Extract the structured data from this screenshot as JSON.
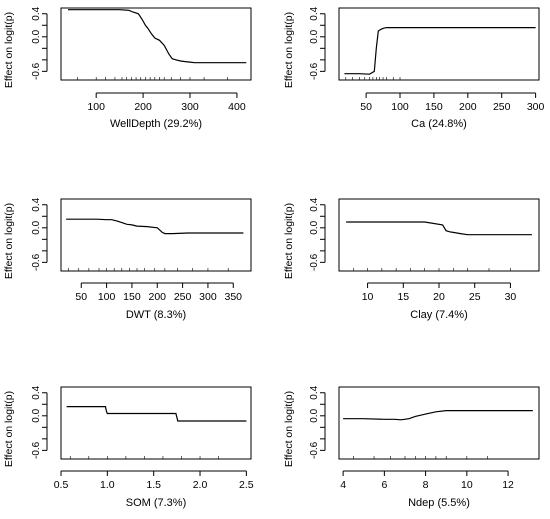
{
  "chart_data": [
    {
      "type": "line",
      "xlabel": "WellDepth  (29.2%)",
      "ylabel": "Effect on logit(p)",
      "xlim": [
        25,
        430
      ],
      "ylim": [
        -0.75,
        0.5
      ],
      "xticks": [
        100,
        200,
        300,
        400
      ],
      "yticks": [
        0.4,
        0.0,
        -0.6
      ],
      "ytick_labels": [
        "0.4",
        "0.0",
        "-0.6"
      ],
      "minor_yticks": [
        0.2,
        -0.2,
        -0.4
      ],
      "series": [
        {
          "x": [
            40,
            100,
            150,
            170,
            178,
            190,
            198,
            205,
            210,
            218,
            225,
            235,
            245,
            255,
            262,
            270,
            280,
            290,
            300,
            310,
            320,
            420
          ],
          "y": [
            0.47,
            0.47,
            0.47,
            0.46,
            0.43,
            0.4,
            0.3,
            0.2,
            0.15,
            0.05,
            -0.02,
            -0.06,
            -0.15,
            -0.3,
            -0.38,
            -0.4,
            -0.42,
            -0.43,
            -0.44,
            -0.45,
            -0.45,
            -0.45
          ]
        }
      ],
      "rug": [
        60,
        100,
        120,
        140,
        155,
        165,
        175,
        185,
        195,
        205,
        215,
        225,
        235,
        245,
        260,
        280,
        300,
        330,
        380
      ]
    },
    {
      "type": "line",
      "xlabel": "Ca  (24.8%)",
      "ylabel": "Effect on logit(p)",
      "xlim": [
        10,
        305
      ],
      "ylim": [
        -0.75,
        0.5
      ],
      "xticks": [
        50,
        100,
        150,
        200,
        250,
        300
      ],
      "yticks": [
        0.4,
        0.0,
        -0.6
      ],
      "ytick_labels": [
        "0.4",
        "0.0",
        "-0.6"
      ],
      "minor_yticks": [
        0.2,
        -0.2,
        -0.4
      ],
      "series": [
        {
          "x": [
            18,
            40,
            55,
            62,
            65,
            68,
            72,
            76,
            80,
            100,
            200,
            300
          ],
          "y": [
            -0.64,
            -0.64,
            -0.65,
            -0.6,
            -0.2,
            0.1,
            0.13,
            0.15,
            0.16,
            0.16,
            0.16,
            0.16
          ]
        }
      ],
      "rug": [
        20,
        30,
        40,
        48,
        55,
        60,
        65,
        70,
        75,
        80,
        90,
        100
      ]
    },
    {
      "type": "line",
      "xlabel": "DWT  (8.3%)",
      "ylabel": "Effect on logit(p)",
      "xlim": [
        10,
        385
      ],
      "ylim": [
        -0.75,
        0.5
      ],
      "xticks": [
        50,
        100,
        150,
        200,
        250,
        300,
        350
      ],
      "yticks": [
        0.4,
        0.0,
        -0.6
      ],
      "ytick_labels": [
        "0.4",
        "0.0",
        "-0.6"
      ],
      "minor_yticks": [
        0.2,
        -0.2,
        -0.4
      ],
      "series": [
        {
          "x": [
            20,
            80,
            100,
            110,
            120,
            130,
            140,
            150,
            160,
            180,
            200,
            210,
            215,
            230,
            260,
            300,
            370
          ],
          "y": [
            0.15,
            0.15,
            0.14,
            0.14,
            0.12,
            0.09,
            0.06,
            0.05,
            0.03,
            0.02,
            0.0,
            -0.08,
            -0.1,
            -0.1,
            -0.09,
            -0.09,
            -0.09
          ]
        }
      ],
      "rug": [
        25,
        45,
        65,
        85,
        100,
        115,
        130,
        145,
        160,
        175,
        195,
        215,
        240,
        270,
        300,
        340
      ]
    },
    {
      "type": "line",
      "xlabel": "Clay  (7.4%)",
      "ylabel": "Effect on logit(p)",
      "xlim": [
        6,
        34
      ],
      "ylim": [
        -0.75,
        0.5
      ],
      "xticks": [
        10,
        15,
        20,
        25,
        30
      ],
      "yticks": [
        0.4,
        0.0,
        -0.6
      ],
      "ytick_labels": [
        "0.4",
        "0.0",
        "-0.6"
      ],
      "minor_yticks": [
        0.2,
        -0.2,
        -0.4
      ],
      "series": [
        {
          "x": [
            7,
            15,
            18,
            20.5,
            21,
            21.5,
            22,
            23,
            24,
            28,
            33
          ],
          "y": [
            0.1,
            0.1,
            0.1,
            0.05,
            -0.05,
            -0.07,
            -0.08,
            -0.1,
            -0.12,
            -0.12,
            -0.12
          ]
        }
      ],
      "rug": [
        8,
        10,
        12,
        14,
        16,
        18,
        20,
        22,
        24,
        27,
        30
      ]
    },
    {
      "type": "line",
      "xlabel": "SOM  (7.3%)",
      "ylabel": "Effect on logit(p)",
      "xlim": [
        0.5,
        2.55
      ],
      "ylim": [
        -0.75,
        0.5
      ],
      "xticks": [
        0.5,
        1.0,
        1.5,
        2.0,
        2.5
      ],
      "xtick_labels": [
        "0.5",
        "1.0",
        "1.5",
        "2.0",
        "2.5"
      ],
      "yticks": [
        0.4,
        0.0,
        -0.6
      ],
      "ytick_labels": [
        "0.4",
        "0.0",
        "-0.6"
      ],
      "minor_yticks": [
        0.2,
        -0.2,
        -0.4
      ],
      "series": [
        {
          "x": [
            0.56,
            0.98,
            0.99,
            1.0,
            1.74,
            1.76,
            2.5
          ],
          "y": [
            0.16,
            0.16,
            0.08,
            0.04,
            0.04,
            -0.09,
            -0.09
          ]
        }
      ],
      "rug": [
        0.6,
        0.8,
        1.0,
        1.2,
        1.4,
        1.6,
        1.8,
        2.0,
        2.2
      ]
    },
    {
      "type": "line",
      "xlabel": "Ndep  (5.5%)",
      "ylabel": "Effect on logit(p)",
      "xlim": [
        3.8,
        13.5
      ],
      "ylim": [
        -0.75,
        0.5
      ],
      "xticks": [
        4,
        6,
        8,
        10,
        12
      ],
      "yticks": [
        0.4,
        0.0,
        -0.6
      ],
      "ytick_labels": [
        "0.4",
        "0.0",
        "-0.6"
      ],
      "minor_yticks": [
        0.2,
        -0.2,
        -0.4
      ],
      "series": [
        {
          "x": [
            4,
            5,
            6,
            6.5,
            6.8,
            7.2,
            7.5,
            8,
            8.5,
            9,
            10,
            13.2
          ],
          "y": [
            -0.05,
            -0.05,
            -0.06,
            -0.06,
            -0.07,
            -0.05,
            -0.01,
            0.03,
            0.07,
            0.09,
            0.09,
            0.09
          ]
        }
      ],
      "rug": [
        4.5,
        5.5,
        6.3,
        7,
        7.5,
        8,
        8.5,
        9,
        10,
        11
      ]
    }
  ]
}
